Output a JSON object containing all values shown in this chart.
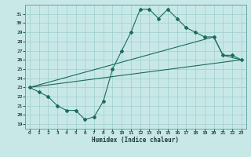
{
  "xlabel": "Humidex (Indice chaleur)",
  "background_color": "#c8e8e8",
  "line_color": "#1a6b5a",
  "xlim": [
    -0.5,
    23.5
  ],
  "ylim": [
    18.5,
    32.0
  ],
  "xticks": [
    0,
    1,
    2,
    3,
    4,
    5,
    6,
    7,
    8,
    9,
    10,
    11,
    12,
    13,
    14,
    15,
    16,
    17,
    18,
    19,
    20,
    21,
    22,
    23
  ],
  "yticks": [
    19,
    20,
    21,
    22,
    23,
    24,
    25,
    26,
    27,
    28,
    29,
    30,
    31
  ],
  "line1_x": [
    0,
    1,
    2,
    3,
    4,
    5,
    6,
    7,
    8,
    9,
    10,
    11,
    12,
    13,
    14,
    15,
    16,
    17,
    18,
    19,
    20,
    21,
    22,
    23
  ],
  "line1_y": [
    23.0,
    22.5,
    22.0,
    21.0,
    20.5,
    20.5,
    19.5,
    19.8,
    21.5,
    25.0,
    27.0,
    29.0,
    31.5,
    31.5,
    30.5,
    31.5,
    30.5,
    29.5,
    29.0,
    28.5,
    28.5,
    26.5,
    26.5,
    26.0
  ],
  "line2_x": [
    0,
    23
  ],
  "line2_y": [
    23.0,
    26.0
  ],
  "line3_x": [
    0,
    20,
    21,
    23
  ],
  "line3_y": [
    23.0,
    28.5,
    26.5,
    26.0
  ]
}
